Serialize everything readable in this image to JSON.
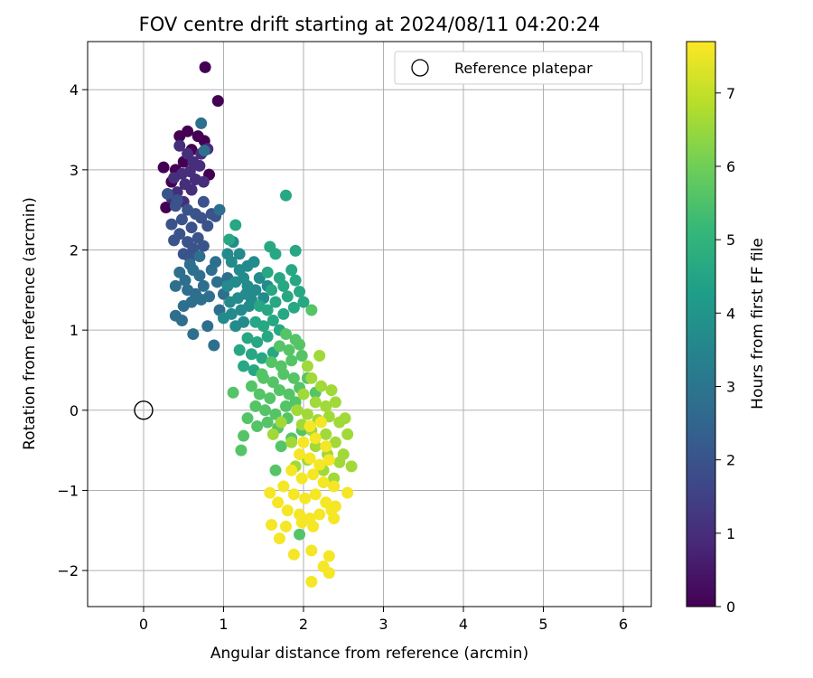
{
  "chart_data": {
    "type": "scatter",
    "title": "FOV centre drift starting at 2024/08/11 04:20:24",
    "xlabel": "Angular distance from reference (arcmin)",
    "ylabel": "Rotation from reference (arcmin)",
    "xlim": [
      -0.7,
      6.35
    ],
    "ylim": [
      -2.45,
      4.6
    ],
    "xticks": [
      0,
      1,
      2,
      3,
      4,
      5,
      6
    ],
    "yticks": [
      -2,
      -1,
      0,
      1,
      2,
      3,
      4
    ],
    "ytick_labels": [
      "−2",
      "−1",
      "0",
      "1",
      "2",
      "3",
      "4"
    ],
    "grid": true,
    "legend": {
      "position": "top-right",
      "label": "Reference platepar"
    },
    "reference_point": {
      "x": 0,
      "y": 0
    },
    "colorbar": {
      "label": "Hours from first FF file",
      "colormap": "viridis",
      "range": [
        0,
        7.7
      ],
      "ticks": [
        0,
        1,
        2,
        3,
        4,
        5,
        6,
        7
      ]
    },
    "colors": {
      "viridis": [
        "#440154",
        "#482878",
        "#3e4989",
        "#31688e",
        "#26828e",
        "#1f9e89",
        "#35b779",
        "#6ece58",
        "#b5de2b",
        "#fde725"
      ]
    },
    "series": [
      {
        "hours": 0.0,
        "points": [
          [
            0.77,
            4.28
          ],
          [
            0.93,
            3.86
          ],
          [
            0.82,
            2.94
          ],
          [
            0.76,
            3.36
          ],
          [
            0.25,
            3.03
          ],
          [
            0.28,
            2.53
          ],
          [
            0.55,
            3.48
          ],
          [
            0.45,
            3.42
          ],
          [
            0.68,
            3.42
          ],
          [
            0.6,
            3.25
          ],
          [
            0.5,
            3.1
          ],
          [
            0.4,
            3.0
          ],
          [
            0.35,
            2.85
          ]
        ]
      },
      {
        "hours": 1.0,
        "points": [
          [
            0.45,
            3.3
          ],
          [
            0.55,
            3.2
          ],
          [
            0.62,
            3.1
          ],
          [
            0.48,
            2.95
          ],
          [
            0.38,
            2.9
          ],
          [
            0.7,
            3.05
          ],
          [
            0.58,
            2.98
          ],
          [
            0.52,
            2.82
          ],
          [
            0.65,
            2.88
          ],
          [
            0.42,
            2.72
          ],
          [
            0.75,
            2.85
          ],
          [
            0.6,
            2.75
          ],
          [
            0.35,
            2.65
          ],
          [
            0.5,
            2.6
          ],
          [
            0.72,
            3.2
          ],
          [
            0.8,
            3.26
          ]
        ]
      },
      {
        "hours": 2.0,
        "points": [
          [
            0.4,
            2.55
          ],
          [
            0.55,
            2.5
          ],
          [
            0.65,
            2.45
          ],
          [
            0.48,
            2.38
          ],
          [
            0.35,
            2.32
          ],
          [
            0.6,
            2.28
          ],
          [
            0.72,
            2.4
          ],
          [
            0.85,
            2.45
          ],
          [
            0.45,
            2.2
          ],
          [
            0.55,
            2.1
          ],
          [
            0.68,
            2.15
          ],
          [
            0.38,
            2.12
          ],
          [
            0.62,
            2.02
          ],
          [
            0.5,
            1.95
          ],
          [
            0.75,
            2.05
          ],
          [
            0.58,
            1.9
          ],
          [
            0.8,
            2.3
          ],
          [
            0.9,
            2.42
          ],
          [
            0.3,
            2.7
          ],
          [
            0.42,
            2.62
          ],
          [
            0.75,
            2.6
          ]
        ]
      },
      {
        "hours": 2.8,
        "points": [
          [
            0.72,
            3.58
          ],
          [
            0.76,
            3.24
          ],
          [
            0.95,
            2.5
          ],
          [
            0.45,
            1.72
          ],
          [
            0.52,
            1.62
          ],
          [
            0.62,
            1.75
          ],
          [
            0.7,
            1.68
          ],
          [
            0.55,
            1.5
          ],
          [
            0.65,
            1.45
          ],
          [
            0.4,
            1.55
          ],
          [
            0.75,
            1.55
          ],
          [
            0.85,
            1.75
          ],
          [
            0.9,
            1.85
          ],
          [
            0.6,
            1.35
          ],
          [
            0.5,
            1.3
          ],
          [
            0.72,
            1.38
          ],
          [
            0.82,
            1.42
          ],
          [
            0.4,
            1.18
          ],
          [
            0.48,
            1.12
          ],
          [
            0.62,
            0.95
          ],
          [
            0.88,
            0.81
          ],
          [
            0.8,
            1.05
          ],
          [
            0.95,
            1.25
          ],
          [
            1.05,
            1.65
          ],
          [
            1.0,
            1.45
          ],
          [
            0.92,
            1.6
          ],
          [
            0.7,
            1.92
          ],
          [
            0.58,
            1.82
          ]
        ]
      },
      {
        "hours": 3.7,
        "points": [
          [
            1.1,
            1.85
          ],
          [
            1.2,
            1.75
          ],
          [
            1.05,
            1.55
          ],
          [
            1.15,
            1.6
          ],
          [
            1.25,
            1.65
          ],
          [
            1.3,
            1.55
          ],
          [
            1.08,
            1.35
          ],
          [
            1.18,
            1.4
          ],
          [
            1.28,
            1.45
          ],
          [
            1.35,
            1.38
          ],
          [
            1.1,
            1.2
          ],
          [
            1.22,
            1.25
          ],
          [
            1.32,
            1.3
          ],
          [
            1.0,
            1.15
          ],
          [
            1.4,
            1.5
          ],
          [
            1.45,
            1.65
          ],
          [
            1.5,
            1.4
          ],
          [
            1.38,
            1.85
          ],
          [
            1.55,
            1.55
          ],
          [
            1.05,
            1.95
          ],
          [
            1.12,
            2.1
          ],
          [
            1.2,
            1.95
          ],
          [
            1.3,
            1.8
          ],
          [
            1.15,
            1.05
          ],
          [
            1.25,
            1.1
          ]
        ]
      },
      {
        "hours": 4.6,
        "points": [
          [
            1.58,
            2.04
          ],
          [
            1.65,
            1.95
          ],
          [
            1.78,
            2.68
          ],
          [
            1.9,
            1.99
          ],
          [
            1.15,
            2.31
          ],
          [
            1.07,
            2.13
          ],
          [
            1.55,
            1.72
          ],
          [
            1.7,
            1.65
          ],
          [
            1.85,
            1.75
          ],
          [
            1.6,
            1.5
          ],
          [
            1.75,
            1.55
          ],
          [
            1.9,
            1.62
          ],
          [
            1.45,
            1.3
          ],
          [
            1.55,
            1.25
          ],
          [
            1.65,
            1.35
          ],
          [
            1.8,
            1.42
          ],
          [
            1.95,
            1.48
          ],
          [
            1.4,
            1.1
          ],
          [
            1.5,
            1.05
          ],
          [
            1.62,
            1.12
          ],
          [
            1.75,
            1.2
          ],
          [
            1.88,
            1.28
          ],
          [
            2.0,
            1.35
          ],
          [
            1.3,
            0.9
          ],
          [
            1.42,
            0.85
          ],
          [
            1.55,
            0.92
          ],
          [
            1.2,
            0.75
          ],
          [
            1.35,
            0.7
          ],
          [
            1.48,
            0.65
          ],
          [
            1.62,
            0.72
          ],
          [
            1.25,
            0.55
          ],
          [
            1.38,
            0.5
          ],
          [
            1.7,
            1.0
          ]
        ]
      },
      {
        "hours": 5.6,
        "points": [
          [
            1.12,
            0.22
          ],
          [
            2.1,
            1.25
          ],
          [
            1.78,
            0.95
          ],
          [
            1.9,
            0.88
          ],
          [
            1.7,
            0.8
          ],
          [
            1.82,
            0.75
          ],
          [
            1.95,
            0.82
          ],
          [
            1.6,
            0.6
          ],
          [
            1.72,
            0.55
          ],
          [
            1.85,
            0.62
          ],
          [
            1.98,
            0.68
          ],
          [
            1.5,
            0.4
          ],
          [
            1.62,
            0.35
          ],
          [
            1.75,
            0.45
          ],
          [
            1.88,
            0.4
          ],
          [
            1.45,
            0.2
          ],
          [
            1.58,
            0.15
          ],
          [
            1.7,
            0.25
          ],
          [
            1.82,
            0.2
          ],
          [
            1.95,
            0.28
          ],
          [
            1.35,
            0.3
          ],
          [
            1.48,
            0.45
          ],
          [
            1.4,
            0.05
          ],
          [
            1.52,
            0.0
          ],
          [
            1.65,
            -0.05
          ],
          [
            1.78,
            0.05
          ],
          [
            1.9,
            0.1
          ],
          [
            1.3,
            -0.1
          ],
          [
            1.42,
            -0.2
          ],
          [
            1.55,
            -0.15
          ],
          [
            1.68,
            -0.22
          ],
          [
            1.8,
            -0.1
          ],
          [
            2.05,
            0.4
          ],
          [
            1.72,
            -0.45
          ],
          [
            1.85,
            -0.35
          ],
          [
            1.98,
            -0.25
          ],
          [
            1.95,
            -1.55
          ],
          [
            1.65,
            -0.75
          ],
          [
            2.15,
            0.22
          ],
          [
            1.25,
            -0.32
          ],
          [
            1.22,
            -0.5
          ]
        ]
      },
      {
        "hours": 6.6,
        "points": [
          [
            2.2,
            0.68
          ],
          [
            2.05,
            0.55
          ],
          [
            2.1,
            0.4
          ],
          [
            2.22,
            0.3
          ],
          [
            2.35,
            0.25
          ],
          [
            2.0,
            0.2
          ],
          [
            2.15,
            0.1
          ],
          [
            2.28,
            0.05
          ],
          [
            2.4,
            0.1
          ],
          [
            1.92,
            0.0
          ],
          [
            2.05,
            -0.05
          ],
          [
            2.18,
            -0.12
          ],
          [
            2.32,
            -0.08
          ],
          [
            2.45,
            -0.15
          ],
          [
            2.55,
            -0.3
          ],
          [
            2.4,
            -0.4
          ],
          [
            2.28,
            -0.3
          ],
          [
            2.1,
            -0.25
          ],
          [
            1.98,
            -0.18
          ],
          [
            1.85,
            -0.4
          ],
          [
            2.5,
            -0.55
          ],
          [
            2.6,
            -0.7
          ],
          [
            2.45,
            -0.65
          ],
          [
            2.3,
            -0.55
          ],
          [
            2.15,
            -0.45
          ],
          [
            2.05,
            -0.62
          ],
          [
            1.9,
            -0.7
          ],
          [
            2.52,
            -0.1
          ],
          [
            1.62,
            -0.3
          ],
          [
            1.72,
            -0.15
          ],
          [
            2.38,
            -0.85
          ],
          [
            2.25,
            -0.75
          ]
        ]
      },
      {
        "hours": 7.6,
        "points": [
          [
            2.08,
            -0.2
          ],
          [
            2.22,
            -0.15
          ],
          [
            2.0,
            -0.4
          ],
          [
            2.15,
            -0.35
          ],
          [
            2.28,
            -0.45
          ],
          [
            1.95,
            -0.55
          ],
          [
            2.08,
            -0.6
          ],
          [
            2.2,
            -0.68
          ],
          [
            2.32,
            -0.62
          ],
          [
            1.85,
            -0.75
          ],
          [
            1.98,
            -0.85
          ],
          [
            2.12,
            -0.8
          ],
          [
            2.25,
            -0.9
          ],
          [
            2.38,
            -0.95
          ],
          [
            1.75,
            -0.95
          ],
          [
            1.88,
            -1.05
          ],
          [
            2.02,
            -1.1
          ],
          [
            2.15,
            -1.05
          ],
          [
            2.28,
            -1.15
          ],
          [
            2.4,
            -1.2
          ],
          [
            1.68,
            -1.15
          ],
          [
            1.8,
            -1.25
          ],
          [
            1.95,
            -1.3
          ],
          [
            2.08,
            -1.35
          ],
          [
            2.2,
            -1.3
          ],
          [
            2.35,
            -1.25
          ],
          [
            1.58,
            -1.03
          ],
          [
            2.55,
            -1.03
          ],
          [
            1.6,
            -1.43
          ],
          [
            1.78,
            -1.45
          ],
          [
            1.98,
            -1.4
          ],
          [
            2.12,
            -1.45
          ],
          [
            1.7,
            -1.6
          ],
          [
            1.88,
            -1.8
          ],
          [
            2.1,
            -1.75
          ],
          [
            2.32,
            -1.82
          ],
          [
            2.25,
            -1.95
          ],
          [
            2.32,
            -2.03
          ],
          [
            2.1,
            -2.14
          ],
          [
            2.38,
            -1.35
          ]
        ]
      }
    ]
  }
}
